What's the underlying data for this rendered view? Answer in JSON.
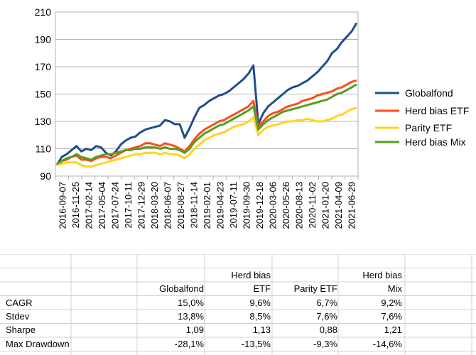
{
  "chart_data": {
    "type": "line",
    "yticks": [
      90,
      110,
      130,
      150,
      170,
      190,
      210
    ],
    "ylim": [
      90,
      210
    ],
    "xticks": [
      "2016-09-07",
      "2016-11-25",
      "2017-02-14",
      "2017-05-04",
      "2017-07-24",
      "2017-10-11",
      "2017-12-29",
      "2018-03-20",
      "2018-06-07",
      "2018-08-27",
      "2018-11-14",
      "2019-02-01",
      "2019-04-23",
      "2019-07-11",
      "2019-09-30",
      "2019-12-18",
      "2020-03-06",
      "2020-05-26",
      "2020-08-13",
      "2020-11-02",
      "2021-01-20",
      "2021-04-09",
      "2021-06-29"
    ],
    "grid": true,
    "legend_position": "right",
    "series": [
      {
        "name": "Globalfond",
        "color": "#1f4e8c",
        "values": [
          98,
          104,
          106,
          109,
          112,
          108,
          110,
          109,
          112,
          111,
          107,
          105,
          108,
          113,
          116,
          118,
          119,
          122,
          124,
          125,
          126,
          127,
          131,
          130,
          128,
          128,
          118,
          125,
          133,
          140,
          142,
          145,
          147,
          149,
          150,
          152,
          155,
          158,
          161,
          165,
          171,
          128,
          136,
          141,
          144,
          147,
          150,
          153,
          155,
          156,
          158,
          160,
          163,
          166,
          170,
          174,
          180,
          183,
          188,
          192,
          196,
          202
        ]
      },
      {
        "name": "Herd bias ETF",
        "color": "#ff4a1c",
        "values": [
          98,
          101,
          102,
          104,
          105,
          102,
          102,
          101,
          103,
          104,
          104,
          103,
          105,
          107,
          109,
          110,
          111,
          112,
          114,
          114,
          113,
          112,
          114,
          113,
          112,
          110,
          108,
          112,
          117,
          121,
          124,
          126,
          128,
          130,
          131,
          133,
          135,
          137,
          139,
          141,
          145,
          126,
          130,
          134,
          136,
          137,
          139,
          141,
          142,
          143,
          145,
          146,
          147,
          149,
          150,
          151,
          152,
          154,
          155,
          157,
          159,
          160
        ]
      },
      {
        "name": "Parity ETF",
        "color": "#ffd320",
        "values": [
          98,
          99,
          100,
          100,
          100,
          98,
          97,
          97,
          98,
          99,
          100,
          101,
          102,
          103,
          104,
          105,
          106,
          106,
          107,
          107,
          107,
          106,
          107,
          106,
          106,
          105,
          103,
          106,
          110,
          113,
          116,
          118,
          120,
          121,
          122,
          124,
          126,
          127,
          128,
          130,
          133,
          120,
          124,
          126,
          127,
          128,
          129,
          130,
          130,
          131,
          131,
          132,
          131,
          130,
          130,
          131,
          132,
          134,
          135,
          137,
          139,
          140
        ]
      },
      {
        "name": "Herd bias Mix",
        "color": "#579d1c",
        "values": [
          99,
          101,
          103,
          104,
          106,
          104,
          103,
          102,
          104,
          105,
          106,
          106,
          107,
          108,
          109,
          109,
          110,
          110,
          111,
          111,
          111,
          110,
          111,
          110,
          110,
          109,
          107,
          110,
          115,
          118,
          121,
          123,
          125,
          127,
          128,
          130,
          132,
          134,
          136,
          138,
          141,
          124,
          128,
          131,
          133,
          135,
          137,
          138,
          139,
          140,
          141,
          142,
          143,
          144,
          145,
          146,
          148,
          150,
          151,
          153,
          155,
          157
        ]
      }
    ]
  },
  "stats_table": {
    "headers": [
      {
        "line1": "",
        "line2": "Globalfond"
      },
      {
        "line1": "Herd bias",
        "line2": "ETF"
      },
      {
        "line1": "",
        "line2": "Parity ETF"
      },
      {
        "line1": "Herd bias",
        "line2": "Mix"
      }
    ],
    "rows": [
      {
        "label": "CAGR",
        "cells": [
          "15,0%",
          "9,6%",
          "6,7%",
          "9,2%"
        ]
      },
      {
        "label": "Stdev",
        "cells": [
          "13,8%",
          "8,5%",
          "7,6%",
          "7,6%"
        ]
      },
      {
        "label": "Sharpe",
        "cells": [
          "1,09",
          "1,13",
          "0,88",
          "1,21"
        ]
      },
      {
        "label": "Max Drawdown",
        "cells": [
          "-28,1%",
          "-13,5%",
          "-9,3%",
          "-14,6%"
        ]
      }
    ]
  }
}
